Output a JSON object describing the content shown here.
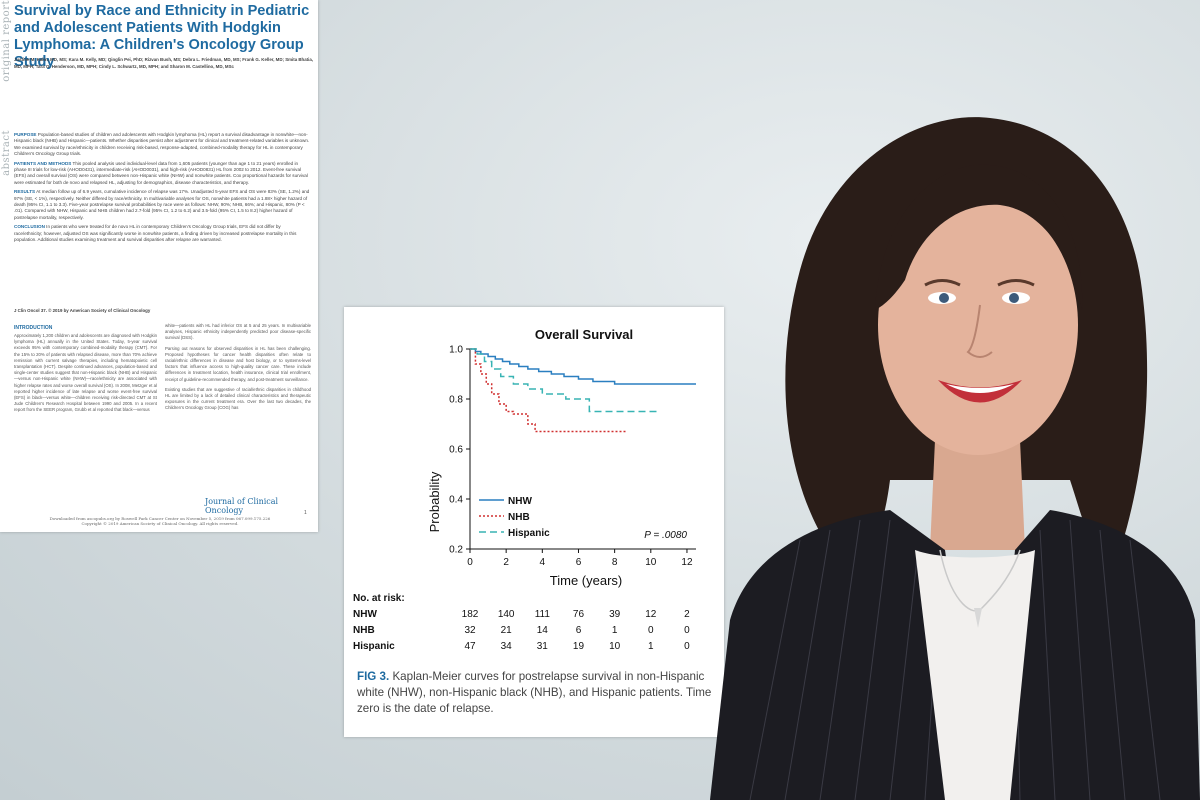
{
  "article": {
    "side_label_1": "original report",
    "side_label_2": "abstract",
    "title": "Survival by Race and Ethnicity in Pediatric and Adolescent Patients With Hodgkin Lymphoma: A Children's Oncology Group Study",
    "authors": "Justine M. Kahn, MD, MS; Kara M. Kelly, MD; Qinglin Pei, PhD; Rizvan Bush, MS; Debra L. Friedman, MD, MS; Frank G. Keller, MD; Smita Bhatia, MD, MPH; Tara O. Henderson, MD, MPH; Cindy L. Schwartz, MD, MPH; and Sharon M. Castellino, MD, MSc",
    "purpose_h": "PURPOSE",
    "purpose": "Population-based studies of children and adolescents with Hodgkin lymphoma (HL) report a survival disadvantage in nonwhite—non-Hispanic black (NHB) and Hispanic—patients. Whether disparities persist after adjustment for clinical and treatment-related variables is unknown. We examined survival by race/ethnicity in children receiving risk-based, response-adapted, combined-modality therapy for HL in contemporary Children's Oncology Group trials.",
    "methods_h": "PATIENTS AND METHODS",
    "methods": "This pooled analysis used individual-level data from 1,605 patients (younger than age 1 to 21 years) enrolled in phase III trials for low-risk (AHOD0431), intermediate-risk (AHOD0031), and high-risk (AHOD0831) HL from 2002 to 2012. Event-free survival (EFS) and overall survival (OS) were compared between non-Hispanic white (NHW) and nonwhite patients. Cox proportional hazards for survival were estimated for both de novo and relapsed HL, adjusting for demographics, disease characteristics, and therapy.",
    "results_h": "RESULTS",
    "results": "At median follow up of 6.9 years, cumulative incidence of relapse was 17%. Unadjusted 5-year EFS and OS were 83% (SE, 1.2%) and 97% (SE, < 1%), respectively. Neither differed by race/ethnicity. In multivariable analyses for OS, nonwhite patients had a 1.88× higher hazard of death (95% CI, 1.1 to 3.3). Five-year postrelapse survival probabilities by race were as follows: NHW, 90%; NHB, 66%; and Hispanic, 80% (P < .01). Compared with NHW, Hispanic and NHB children had 2.7-fold (95% CI, 1.2 to 6.2) and 3.5-fold (95% CI, 1.5 to 8.2) higher hazard of postrelapse mortality, respectively.",
    "conclusion_h": "CONCLUSION",
    "conclusion": "In patients who were treated for de novo HL in contemporary Children's Oncology Group trials, EFS did not differ by race/ethnicity; however, adjusted OS was significantly worse in nonwhite patients, a finding driven by increased postrelapse mortality in this population. Additional studies examining treatment and survival disparities after relapse are warranted.",
    "citation": "J Clin Oncol 37. © 2019 by American Society of Clinical Oncology",
    "intro_h": "INTRODUCTION",
    "intro_left": "Approximately 1,200 children and adolescents are diagnosed with Hodgkin lymphoma (HL) annually in the United States. Today, 5-year survival exceeds 95% with contemporary combined-modality therapy (CMT). For the 15% to 20% of patients with relapsed disease, more than 70% achieve remission with current salvage therapies, including hematopoietic cell transplantation (HCT). Despite continued advances, population-based and single-center studies suggest that non-Hispanic black (NHB) and Hispanic—versus non-Hispanic white (NHW)—race/ethnicity are associated with higher relapse rates and worse overall survival (OS). In 2008, Metzger et al reported higher incidence of late relapse and worse event-free survival (EFS) in black—versus white—children receiving risk-directed CMT at St Jude Children's Research Hospital between 1990 and 2005. In a recent report from the SEER program, Grubb et al reported that black—versus",
    "intro_right_1": "white—patients with HL had inferior OS at 5 and 25 years. In multivariable analyses, Hispanic ethnicity independently predicted poor disease-specific survival (DSS).",
    "intro_right_2": "Parsing out reasons for observed disparities in HL has been challenging. Proposed hypotheses for cancer health disparities often relate to racial/ethnic differences in disease and host biology, or to systems-level factors that influence access to high-quality cancer care. These include differences in treatment location, health insurance, clinical trial enrollment, receipt of guideline-recommended therapy, and post-treatment surveillance.",
    "intro_right_3": "Existing studies that are suggestive of racial/ethnic disparities in childhood HL are limited by a lack of detailed clinical characteristics and therapeutic exposures in the current treatment era. Over the last two decades, the Children's Oncology Group (COG) has",
    "journal_logo": "Journal of Clinical Oncology",
    "page_number": "1",
    "download_note": "Downloaded from ascopubs.org by Roswell Park Cancer Center on November 5, 2019 from 067.099.175.226 Copyright © 2019 American Society of Clinical Oncology. All rights reserved."
  },
  "figure": {
    "caption_label": "FIG 3.",
    "caption_text": " Kaplan-Meier curves for postrelapse survival in non-Hispanic white (NHW), non-Hispanic black (NHB), and Hispanic patients. Time zero is the date of relapse.",
    "risk_header": "No. at risk:",
    "risk_rows": [
      {
        "label": "NHW",
        "values": [
          "182",
          "140",
          "111",
          "76",
          "39",
          "12",
          "2"
        ]
      },
      {
        "label": "NHB",
        "values": [
          "32",
          "21",
          "14",
          "6",
          "1",
          "0",
          "0"
        ]
      },
      {
        "label": "Hispanic",
        "values": [
          "47",
          "34",
          "31",
          "19",
          "10",
          "1",
          "0"
        ]
      }
    ]
  },
  "chart_data": {
    "type": "line",
    "title": "Overall Survival",
    "xlabel": "Time (years)",
    "ylabel": "Probability",
    "xlim": [
      0,
      12.5
    ],
    "ylim": [
      0.2,
      1.0
    ],
    "xticks": [
      "0",
      "2",
      "4",
      "6",
      "8",
      "10",
      "12"
    ],
    "yticks": [
      "0.2",
      "0.4",
      "0.6",
      "0.8",
      "1.0"
    ],
    "annotation": "P = .0080",
    "legend_position": "bottom-left",
    "series": [
      {
        "name": "NHW",
        "color": "#2a7fc0",
        "dash": "solid",
        "x": [
          0,
          0.3,
          0.6,
          1,
          1.4,
          1.8,
          2.2,
          2.7,
          3.2,
          3.8,
          4.5,
          5.2,
          6,
          6.8,
          8,
          12.5
        ],
        "y": [
          1.0,
          0.99,
          0.98,
          0.97,
          0.96,
          0.95,
          0.94,
          0.93,
          0.92,
          0.91,
          0.9,
          0.89,
          0.88,
          0.87,
          0.86,
          0.86
        ]
      },
      {
        "name": "NHB",
        "color": "#d03030",
        "dash": "dotted",
        "x": [
          0,
          0.3,
          0.6,
          0.9,
          1.2,
          1.6,
          2,
          2.4,
          3.2,
          3.6,
          8.7
        ],
        "y": [
          1.0,
          0.94,
          0.9,
          0.86,
          0.82,
          0.78,
          0.75,
          0.74,
          0.7,
          0.67,
          0.67
        ]
      },
      {
        "name": "Hispanic",
        "color": "#38b4b4",
        "dash": "dashed",
        "x": [
          0,
          0.4,
          0.8,
          1.2,
          1.7,
          2.4,
          3.2,
          4,
          5.3,
          6.6,
          10.4
        ],
        "y": [
          1.0,
          0.98,
          0.95,
          0.92,
          0.89,
          0.86,
          0.84,
          0.82,
          0.8,
          0.75,
          0.75
        ]
      }
    ]
  },
  "colors": {
    "accent_blue": "#1e6aa0",
    "background": "#d3dbde"
  }
}
